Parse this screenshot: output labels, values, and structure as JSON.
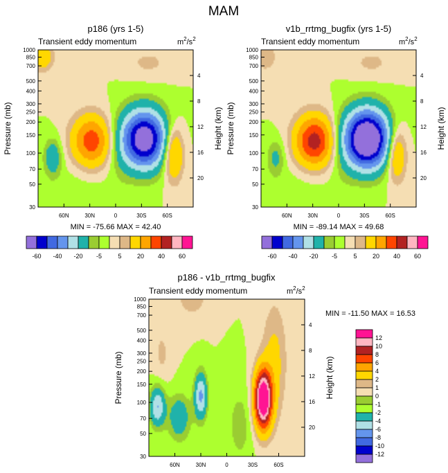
{
  "figure_title": "MAM",
  "colors": {
    "grey": "#808080",
    "stripe_pos": "#ffd200",
    "stripe_neg": "#2ab7a8"
  },
  "chart_data": [
    {
      "type": "heatmap",
      "title": "p186 (yrs 1-5)",
      "subtitle": "Transient eddy momentum",
      "units_base": "m",
      "units_exp1": "2",
      "units_mid": "/s",
      "units_exp2": "2",
      "xlabel": "",
      "ylabel": "Pressure (mb)",
      "ylabel_right": "Height (km)",
      "x_ticks": [
        "60N",
        "30N",
        "0",
        "30S",
        "60S"
      ],
      "y_ticks": [
        "30",
        "50",
        "70",
        "100",
        "150",
        "200",
        "250",
        "300",
        "400",
        "500",
        "700",
        "850",
        "1000"
      ],
      "y_ticks_right": [
        "20",
        "16",
        "12",
        "8",
        "4"
      ],
      "ylim": [
        1000,
        30
      ],
      "min_max": "MIN = -75.66   MAX =  42.40",
      "features": [
        {
          "lat": 28,
          "p": 230,
          "value": 36,
          "sx": 16,
          "sy": 0.4
        },
        {
          "lat": -33,
          "p": 220,
          "value": -72,
          "sx": 18,
          "sy": 0.45
        },
        {
          "lat": -67,
          "p": 300,
          "value": 28,
          "sx": 8,
          "sy": 0.42
        },
        {
          "lat": 73,
          "p": 330,
          "value": -18,
          "sx": 7,
          "sy": 0.28
        },
        {
          "lat": 85,
          "p": 35,
          "value": 18,
          "sx": 9,
          "sy": 0.22
        },
        {
          "lat": -38,
          "p": 40,
          "value": 6,
          "sx": 20,
          "sy": 0.25
        },
        {
          "lat": -5,
          "p": 280,
          "value": -4,
          "sx": 10,
          "sy": 0.6
        },
        {
          "lat": 45,
          "p": 700,
          "value": -3,
          "sx": 30,
          "sy": 0.5
        }
      ]
    },
    {
      "type": "heatmap",
      "title": "v1b_rrtmg_bugfix (yrs 1-5)",
      "subtitle": "Transient eddy momentum",
      "units_base": "m",
      "units_exp1": "2",
      "units_mid": "/s",
      "units_exp2": "2",
      "xlabel": "",
      "ylabel": "Pressure (mb)",
      "ylabel_right": "Height (km)",
      "x_ticks": [
        "60N",
        "30N",
        "0",
        "30S",
        "60S"
      ],
      "y_ticks": [
        "30",
        "50",
        "70",
        "100",
        "150",
        "200",
        "250",
        "300",
        "400",
        "500",
        "700",
        "850",
        "1000"
      ],
      "y_ticks_right": [
        "20",
        "16",
        "12",
        "8",
        "4"
      ],
      "ylim": [
        1000,
        30
      ],
      "min_max": "MIN = -89.14   MAX =  49.68",
      "features": [
        {
          "lat": 28,
          "p": 230,
          "value": 45,
          "sx": 16,
          "sy": 0.4
        },
        {
          "lat": -33,
          "p": 220,
          "value": -86,
          "sx": 18,
          "sy": 0.45
        },
        {
          "lat": -67,
          "p": 300,
          "value": 26,
          "sx": 8,
          "sy": 0.42
        },
        {
          "lat": 73,
          "p": 330,
          "value": -12,
          "sx": 7,
          "sy": 0.28
        },
        {
          "lat": 85,
          "p": 35,
          "value": 10,
          "sx": 9,
          "sy": 0.22
        },
        {
          "lat": -38,
          "p": 40,
          "value": 6,
          "sx": 20,
          "sy": 0.25
        },
        {
          "lat": -5,
          "p": 280,
          "value": -4,
          "sx": 10,
          "sy": 0.6
        },
        {
          "lat": 45,
          "p": 700,
          "value": -3,
          "sx": 30,
          "sy": 0.5
        }
      ]
    },
    {
      "type": "heatmap",
      "title": "p186 - v1b_rrtmg_bugfix",
      "subtitle": "Transient eddy momentum",
      "units_base": "m",
      "units_exp1": "2",
      "units_mid": "/s",
      "units_exp2": "2",
      "xlabel": "",
      "ylabel": "Pressure (mb)",
      "ylabel_right": "Height (km)",
      "x_ticks": [
        "60N",
        "30N",
        "0",
        "30S",
        "60S"
      ],
      "y_ticks": [
        "30",
        "50",
        "70",
        "100",
        "150",
        "200",
        "250",
        "300",
        "400",
        "500",
        "700",
        "850",
        "1000"
      ],
      "y_ticks_right": [
        "20",
        "16",
        "12",
        "8",
        "4"
      ],
      "ylim": [
        1000,
        30
      ],
      "min_max": "MIN = -11.50   MAX =  16.53",
      "features": [
        {
          "lat": -42,
          "p": 280,
          "value": 16,
          "sx": 7,
          "sy": 0.45
        },
        {
          "lat": -55,
          "p": 120,
          "value": 2.5,
          "sx": 10,
          "sy": 0.9
        },
        {
          "lat": 30,
          "p": 260,
          "value": -6.5,
          "sx": 5,
          "sy": 0.35
        },
        {
          "lat": 80,
          "p": 330,
          "value": -6,
          "sx": 6,
          "sy": 0.3
        },
        {
          "lat": 55,
          "p": 420,
          "value": -3.5,
          "sx": 9,
          "sy": 0.35
        },
        {
          "lat": 40,
          "p": 30,
          "value": 1.5,
          "sx": 14,
          "sy": 0.3
        },
        {
          "lat": 75,
          "p": 100,
          "value": 1.2,
          "sx": 7,
          "sy": 0.45
        },
        {
          "lat": -15,
          "p": 500,
          "value": -1.5,
          "sx": 10,
          "sy": 0.6
        }
      ]
    }
  ],
  "colorbar_horizontal": {
    "labels": [
      "-60",
      "-40",
      "-20",
      "-5",
      "5",
      "20",
      "40",
      "60"
    ],
    "colors": [
      "#9370db",
      "#0000cd",
      "#4169e1",
      "#6495ed",
      "#b0e0e6",
      "#20b2aa",
      "#9acd32",
      "#adff2f",
      "#f5deb3",
      "#deb887",
      "#ffd700",
      "#ffa500",
      "#ff4500",
      "#b22222",
      "#ffb6c1",
      "#ff1493"
    ]
  },
  "colorbar_vertical": {
    "labels": [
      "12",
      "10",
      "8",
      "6",
      "4",
      "2",
      "1",
      "0",
      "-1",
      "-2",
      "-4",
      "-6",
      "-8",
      "-10",
      "-12"
    ],
    "colors": [
      "#ff1493",
      "#ffb6c1",
      "#b22222",
      "#ff4500",
      "#ffa500",
      "#ffd700",
      "#deb887",
      "#f5deb3",
      "#9acd32",
      "#adff2f",
      "#20b2aa",
      "#b0e0e6",
      "#6495ed",
      "#4169e1",
      "#0000cd",
      "#9370db"
    ]
  }
}
